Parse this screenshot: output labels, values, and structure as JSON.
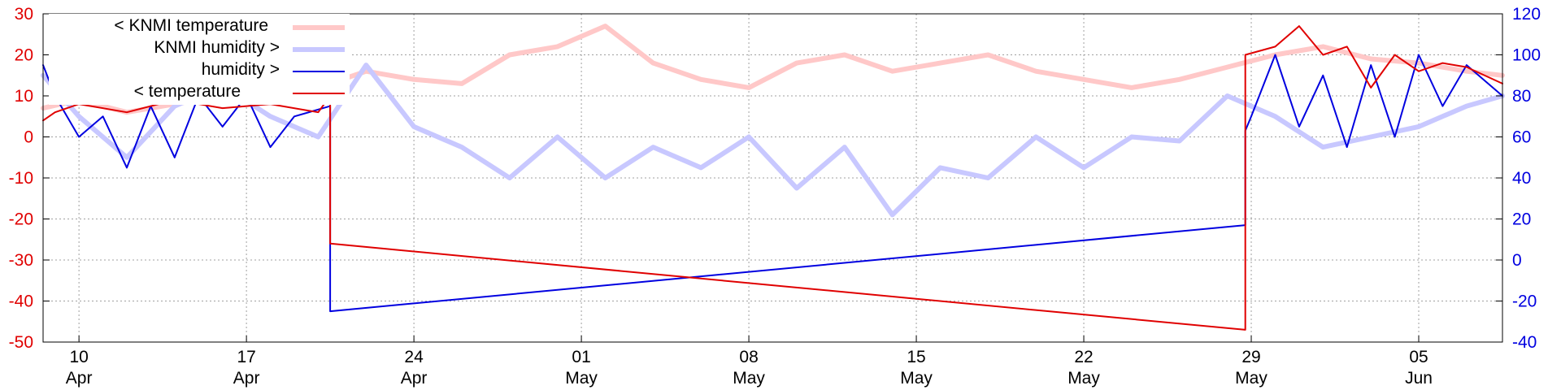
{
  "chart_data": {
    "type": "line",
    "title": "",
    "xlabel": "",
    "ylabel_left": "",
    "ylabel_right": "",
    "x_range": [
      "2023-04-08 12:00",
      "2023-06-08 12:00"
    ],
    "y_left_range": [
      -50,
      30
    ],
    "y_right_range": [
      -40,
      120
    ],
    "y_left_ticks": [
      "30",
      "20",
      "10",
      "0",
      "-10",
      "-20",
      "-30",
      "-40",
      "-50"
    ],
    "y_right_ticks": [
      "120",
      "100",
      "80",
      "60",
      "40",
      "20",
      "0",
      "-20",
      "-40"
    ],
    "x_ticks": [
      {
        "date": "2023-04-10",
        "day": "10",
        "month": "Apr"
      },
      {
        "date": "2023-04-17",
        "day": "17",
        "month": "Apr"
      },
      {
        "date": "2023-04-24",
        "day": "24",
        "month": "Apr"
      },
      {
        "date": "2023-05-01",
        "day": "01",
        "month": "May"
      },
      {
        "date": "2023-05-08",
        "day": "08",
        "month": "May"
      },
      {
        "date": "2023-05-15",
        "day": "15",
        "month": "May"
      },
      {
        "date": "2023-05-22",
        "day": "22",
        "month": "May"
      },
      {
        "date": "2023-05-29",
        "day": "29",
        "month": "May"
      },
      {
        "date": "2023-06-05",
        "day": "05",
        "month": "Jun"
      }
    ],
    "grid": true,
    "legend_position": "top-left",
    "series": [
      {
        "name": "< KNMI temperature",
        "axis": "left",
        "color": "#ffc8c8",
        "width": 6,
        "points": [
          [
            "2023-04-08 12:00",
            7
          ],
          [
            "2023-04-10",
            9
          ],
          [
            "2023-04-12",
            6
          ],
          [
            "2023-04-14",
            8
          ],
          [
            "2023-04-16",
            10
          ],
          [
            "2023-04-18",
            9
          ],
          [
            "2023-04-20",
            12
          ],
          [
            "2023-04-22",
            16
          ],
          [
            "2023-04-24",
            14
          ],
          [
            "2023-04-26",
            13
          ],
          [
            "2023-04-28",
            20
          ],
          [
            "2023-04-30",
            22
          ],
          [
            "2023-05-02",
            27
          ],
          [
            "2023-05-04",
            18
          ],
          [
            "2023-05-06",
            14
          ],
          [
            "2023-05-08",
            12
          ],
          [
            "2023-05-10",
            18
          ],
          [
            "2023-05-12",
            20
          ],
          [
            "2023-05-14",
            16
          ],
          [
            "2023-05-16",
            18
          ],
          [
            "2023-05-18",
            20
          ],
          [
            "2023-05-20",
            16
          ],
          [
            "2023-05-22",
            14
          ],
          [
            "2023-05-24",
            12
          ],
          [
            "2023-05-26",
            14
          ],
          [
            "2023-05-28",
            17
          ],
          [
            "2023-05-30",
            20
          ],
          [
            "2023-06-01",
            22
          ],
          [
            "2023-06-03",
            19
          ],
          [
            "2023-06-05",
            18
          ],
          [
            "2023-06-07",
            16
          ],
          [
            "2023-06-08 12:00",
            15
          ]
        ]
      },
      {
        "name": "KNMI humidity >",
        "axis": "right",
        "color": "#c8c8ff",
        "width": 6,
        "points": [
          [
            "2023-04-08 12:00",
            90
          ],
          [
            "2023-04-10",
            70
          ],
          [
            "2023-04-12",
            50
          ],
          [
            "2023-04-14",
            75
          ],
          [
            "2023-04-16",
            85
          ],
          [
            "2023-04-18",
            70
          ],
          [
            "2023-04-20",
            60
          ],
          [
            "2023-04-22",
            95
          ],
          [
            "2023-04-24",
            65
          ],
          [
            "2023-04-26",
            55
          ],
          [
            "2023-04-28",
            40
          ],
          [
            "2023-04-30",
            60
          ],
          [
            "2023-05-02",
            40
          ],
          [
            "2023-05-04",
            55
          ],
          [
            "2023-05-06",
            45
          ],
          [
            "2023-05-08",
            60
          ],
          [
            "2023-05-10",
            35
          ],
          [
            "2023-05-12",
            55
          ],
          [
            "2023-05-14",
            22
          ],
          [
            "2023-05-16",
            45
          ],
          [
            "2023-05-18",
            40
          ],
          [
            "2023-05-20",
            60
          ],
          [
            "2023-05-22",
            45
          ],
          [
            "2023-05-24",
            60
          ],
          [
            "2023-05-26",
            58
          ],
          [
            "2023-05-28",
            80
          ],
          [
            "2023-05-30",
            70
          ],
          [
            "2023-06-01",
            55
          ],
          [
            "2023-06-03",
            60
          ],
          [
            "2023-06-05",
            65
          ],
          [
            "2023-06-07",
            75
          ],
          [
            "2023-06-08 12:00",
            80
          ]
        ]
      },
      {
        "name": "humidity >",
        "axis": "right",
        "color": "#0000e0",
        "width": 2,
        "points": [
          [
            "2023-04-08 12:00",
            95
          ],
          [
            "2023-04-09",
            80
          ],
          [
            "2023-04-10",
            60
          ],
          [
            "2023-04-11",
            70
          ],
          [
            "2023-04-12",
            45
          ],
          [
            "2023-04-13",
            75
          ],
          [
            "2023-04-14",
            50
          ],
          [
            "2023-04-15",
            80
          ],
          [
            "2023-04-16",
            65
          ],
          [
            "2023-04-17",
            80
          ],
          [
            "2023-04-18",
            55
          ],
          [
            "2023-04-19",
            70
          ],
          [
            "2023-04-20 12:00",
            75
          ],
          [
            "2023-04-20 12:00",
            -25
          ],
          [
            "2023-05-28 18:00",
            17
          ],
          [
            "2023-05-28 18:00",
            63
          ],
          [
            "2023-05-29",
            70
          ],
          [
            "2023-05-30",
            100
          ],
          [
            "2023-05-31",
            65
          ],
          [
            "2023-06-01",
            90
          ],
          [
            "2023-06-02",
            55
          ],
          [
            "2023-06-03",
            95
          ],
          [
            "2023-06-04",
            60
          ],
          [
            "2023-06-05",
            100
          ],
          [
            "2023-06-06",
            75
          ],
          [
            "2023-06-07",
            95
          ],
          [
            "2023-06-08 12:00",
            80
          ]
        ]
      },
      {
        "name": "< temperature",
        "axis": "left",
        "color": "#e00000",
        "width": 2,
        "points": [
          [
            "2023-04-08 12:00",
            4
          ],
          [
            "2023-04-09",
            6
          ],
          [
            "2023-04-10",
            8
          ],
          [
            "2023-04-12",
            6
          ],
          [
            "2023-04-14",
            9
          ],
          [
            "2023-04-16",
            7
          ],
          [
            "2023-04-18",
            8
          ],
          [
            "2023-04-20",
            6
          ],
          [
            "2023-04-20 12:00",
            10
          ],
          [
            "2023-04-20 12:00",
            -26
          ],
          [
            "2023-05-28 18:00",
            -47
          ],
          [
            "2023-05-28 18:00",
            20
          ],
          [
            "2023-05-30",
            22
          ],
          [
            "2023-05-31",
            27
          ],
          [
            "2023-06-01",
            20
          ],
          [
            "2023-06-02",
            22
          ],
          [
            "2023-06-03",
            12
          ],
          [
            "2023-06-04",
            20
          ],
          [
            "2023-06-05",
            16
          ],
          [
            "2023-06-06",
            18
          ],
          [
            "2023-06-07",
            17
          ],
          [
            "2023-06-08 12:00",
            13
          ]
        ]
      }
    ]
  }
}
